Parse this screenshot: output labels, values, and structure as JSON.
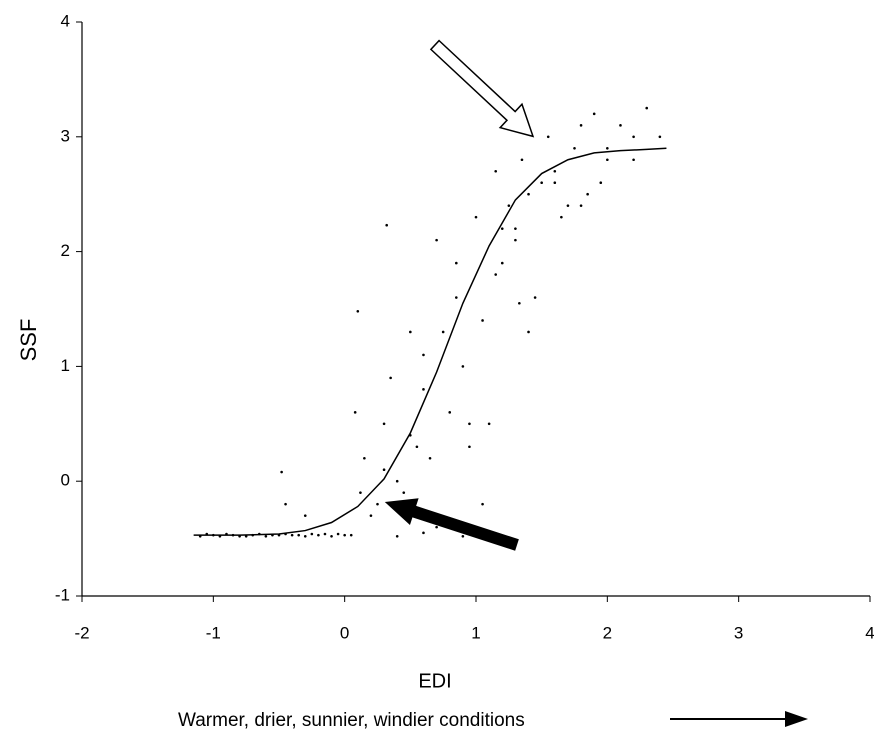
{
  "chart_data": {
    "type": "scatter",
    "x_label": "EDI",
    "y_label": "SSF",
    "annotation": "Warmer, drier, sunnier, windier conditions",
    "xlim": [
      -2,
      4
    ],
    "xticks": [
      -2,
      -1,
      0,
      1,
      2,
      3,
      4
    ],
    "ylim": [
      -1,
      4
    ],
    "yticks": [
      -1,
      0,
      1,
      2,
      3,
      4
    ],
    "grid": false,
    "points": {
      "color": "#000000",
      "x": [
        -1.1,
        -1.0,
        -0.95,
        -0.9,
        -0.85,
        -0.8,
        -0.7,
        -0.65,
        -0.6,
        -0.5,
        -0.45,
        -0.4,
        -0.3,
        -0.25,
        -0.2,
        -0.1,
        -0.05,
        0.0,
        -1.05,
        -0.75,
        -0.55,
        -0.35,
        -0.15,
        0.05,
        -0.48,
        -0.45,
        -0.3,
        0.08,
        0.12,
        0.15,
        0.2,
        0.25,
        0.3,
        0.35,
        0.4,
        0.45,
        0.5,
        0.55,
        0.6,
        0.65,
        0.7,
        0.75,
        0.8,
        0.85,
        0.9,
        0.95,
        1.0,
        1.05,
        1.1,
        1.15,
        1.2,
        1.25,
        1.3,
        1.35,
        1.4,
        1.45,
        1.5,
        1.55,
        1.6,
        1.65,
        1.7,
        1.75,
        1.8,
        1.85,
        1.9,
        1.95,
        2.0,
        2.1,
        2.2,
        2.3,
        2.4,
        0.3,
        0.5,
        0.6,
        0.7,
        0.85,
        0.95,
        1.05,
        1.15,
        1.3,
        1.4,
        1.6,
        1.8,
        2.0,
        2.2,
        0.1,
        0.32,
        0.9,
        1.2,
        1.33,
        0.6,
        0.4
      ],
      "values": [
        -0.48,
        -0.47,
        -0.48,
        -0.46,
        -0.47,
        -0.48,
        -0.47,
        -0.46,
        -0.48,
        -0.47,
        -0.46,
        -0.47,
        -0.48,
        -0.46,
        -0.47,
        -0.48,
        -0.46,
        -0.47,
        -0.46,
        -0.48,
        -0.47,
        -0.47,
        -0.46,
        -0.47,
        0.08,
        -0.2,
        -0.3,
        0.6,
        -0.1,
        0.2,
        -0.3,
        -0.2,
        0.5,
        0.9,
        0.0,
        -0.1,
        1.3,
        0.3,
        1.1,
        0.2,
        2.1,
        1.3,
        0.6,
        1.9,
        1.0,
        0.5,
        2.3,
        1.4,
        0.5,
        2.7,
        1.9,
        2.4,
        2.2,
        2.8,
        2.5,
        1.6,
        2.6,
        3.0,
        2.7,
        2.3,
        2.4,
        2.9,
        3.1,
        2.5,
        3.2,
        2.6,
        2.9,
        3.1,
        2.8,
        3.25,
        3.0,
        0.1,
        0.4,
        0.8,
        -0.4,
        1.6,
        0.3,
        -0.2,
        1.8,
        2.1,
        1.3,
        2.6,
        2.4,
        2.8,
        3.0,
        1.48,
        2.23,
        -0.48,
        2.2,
        1.55,
        -0.45,
        -0.48
      ]
    },
    "fit_line": {
      "color": "#000000",
      "x": [
        -1.15,
        -0.8,
        -0.5,
        -0.3,
        -0.1,
        0.1,
        0.3,
        0.5,
        0.7,
        0.9,
        1.1,
        1.3,
        1.5,
        1.7,
        1.9,
        2.1,
        2.3,
        2.45
      ],
      "values": [
        -0.47,
        -0.47,
        -0.46,
        -0.43,
        -0.36,
        -0.22,
        0.02,
        0.42,
        0.95,
        1.55,
        2.05,
        2.45,
        2.68,
        2.8,
        2.86,
        2.88,
        2.89,
        2.9
      ]
    }
  }
}
